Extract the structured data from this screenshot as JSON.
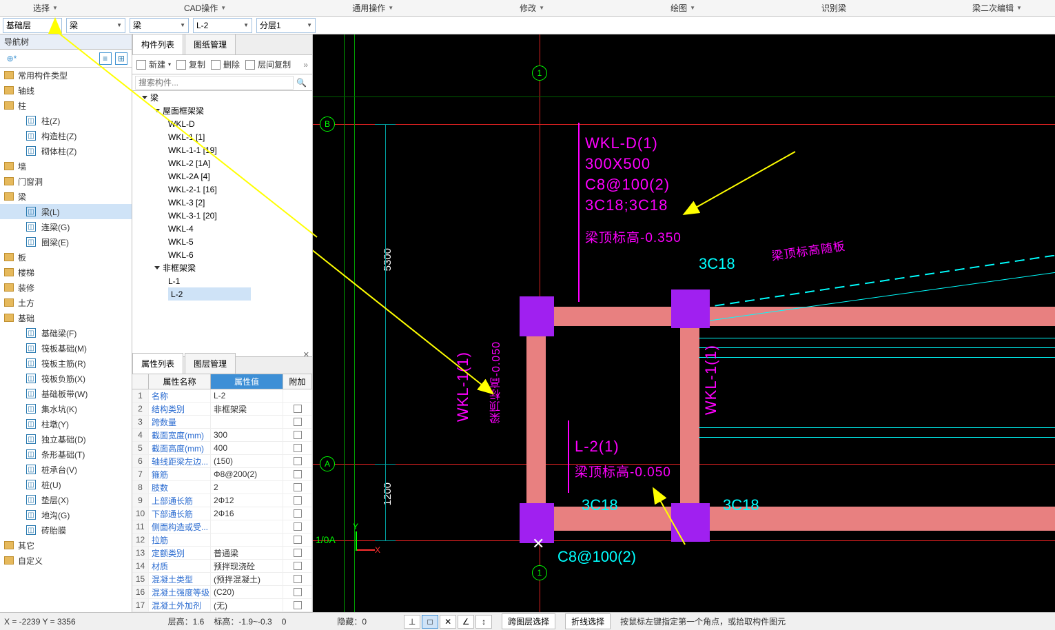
{
  "top_menu": {
    "items": [
      "选择",
      "CAD操作",
      "通用操作",
      "修改",
      "绘图",
      "识别梁",
      "梁二次编辑"
    ]
  },
  "dropdowns": {
    "layer": "基础层",
    "cat": "梁",
    "type": "梁",
    "name": "L-2",
    "sub": "分层1"
  },
  "nav": {
    "title": "导航树",
    "add_icon": "⊕*",
    "categories": [
      {
        "label": "常用构件类型",
        "leaves": []
      },
      {
        "label": "轴线",
        "leaves": []
      },
      {
        "label": "柱",
        "leaves": [
          {
            "label": "柱(Z)"
          },
          {
            "label": "构造柱(Z)"
          },
          {
            "label": "砌体柱(Z)"
          }
        ]
      },
      {
        "label": "墙",
        "leaves": []
      },
      {
        "label": "门窗洞",
        "leaves": []
      },
      {
        "label": "梁",
        "leaves": [
          {
            "label": "梁(L)",
            "sel": true
          },
          {
            "label": "连梁(G)"
          },
          {
            "label": "圈梁(E)"
          }
        ]
      },
      {
        "label": "板",
        "leaves": []
      },
      {
        "label": "楼梯",
        "leaves": []
      },
      {
        "label": "装修",
        "leaves": []
      },
      {
        "label": "土方",
        "leaves": []
      },
      {
        "label": "基础",
        "leaves": [
          {
            "label": "基础梁(F)"
          },
          {
            "label": "筏板基础(M)"
          },
          {
            "label": "筏板主筋(R)"
          },
          {
            "label": "筏板负筋(X)"
          },
          {
            "label": "基础板带(W)"
          },
          {
            "label": "集水坑(K)"
          },
          {
            "label": "柱墩(Y)"
          },
          {
            "label": "独立基础(D)"
          },
          {
            "label": "条形基础(T)"
          },
          {
            "label": "桩承台(V)"
          },
          {
            "label": "桩(U)"
          },
          {
            "label": "垫层(X)"
          },
          {
            "label": "地沟(G)"
          },
          {
            "label": "砖胎膜"
          }
        ]
      },
      {
        "label": "其它",
        "leaves": []
      },
      {
        "label": "自定义",
        "leaves": []
      }
    ]
  },
  "comp": {
    "tabs": [
      "构件列表",
      "图纸管理"
    ],
    "toolbar": {
      "new": "新建",
      "copy": "复制",
      "del": "删除",
      "layer_copy": "层间复制"
    },
    "search_placeholder": "搜索构件...",
    "tree": {
      "root": "梁",
      "groups": [
        {
          "label": "屋面框架梁",
          "items": [
            "WKL-D",
            "WKL-1 [1]",
            "WKL-1-1 [19]",
            "WKL-2 [1A]",
            "WKL-2A [4]",
            "WKL-2-1 [16]",
            "WKL-3 [2]",
            "WKL-3-1 [20]",
            "WKL-4",
            "WKL-5",
            "WKL-6"
          ]
        },
        {
          "label": "非框架梁",
          "items": [
            "L-1",
            "L-2"
          ],
          "sel": "L-2"
        }
      ]
    },
    "prop": {
      "tabs": [
        "属性列表",
        "图层管理"
      ],
      "head": {
        "name": "属性名称",
        "val": "属性值",
        "add": "附加"
      },
      "rows": [
        {
          "n": 1,
          "name": "名称",
          "val": "L-2",
          "chk": false
        },
        {
          "n": 2,
          "name": "结构类别",
          "val": "非框架梁",
          "chk": true
        },
        {
          "n": 3,
          "name": "跨数量",
          "val": "",
          "chk": true
        },
        {
          "n": 4,
          "name": "截面宽度(mm)",
          "val": "300",
          "chk": true
        },
        {
          "n": 5,
          "name": "截面高度(mm)",
          "val": "400",
          "chk": true
        },
        {
          "n": 6,
          "name": "轴线距梁左边...",
          "val": "(150)",
          "chk": true
        },
        {
          "n": 7,
          "name": "箍筋",
          "val": "Φ8@200(2)",
          "chk": true
        },
        {
          "n": 8,
          "name": "肢数",
          "val": "2",
          "chk": true
        },
        {
          "n": 9,
          "name": "上部通长筋",
          "val": "2Φ12",
          "chk": true
        },
        {
          "n": 10,
          "name": "下部通长筋",
          "val": "2Φ16",
          "chk": true
        },
        {
          "n": 11,
          "name": "侧面构造或受...",
          "val": "",
          "chk": true
        },
        {
          "n": 12,
          "name": "拉筋",
          "val": "",
          "chk": true
        },
        {
          "n": 13,
          "name": "定额类别",
          "val": "普通梁",
          "chk": true
        },
        {
          "n": 14,
          "name": "材质",
          "val": "预拌现浇砼",
          "chk": true
        },
        {
          "n": 15,
          "name": "混凝土类型",
          "val": "(预拌混凝土)",
          "chk": true
        },
        {
          "n": 16,
          "name": "混凝土强度等级",
          "val": "(C20)",
          "chk": true
        },
        {
          "n": 17,
          "name": "混凝土外加剂",
          "val": "(无)",
          "chk": true
        }
      ]
    }
  },
  "canvas": {
    "axis_labels": {
      "top": "1",
      "bottom": "1",
      "left_top": "B",
      "left_bot": "A",
      "left_mid": "1/0A"
    },
    "dim_5300": "5300",
    "dim_1200": "1200",
    "ucs": {
      "x": "X",
      "y": "Y"
    },
    "wkl_d": [
      "WKL-D(1)",
      "300X500",
      "C8@100(2)",
      "3C18;3C18",
      "梁顶标高-0.350"
    ],
    "wkl_1_left": "WKL-1(1)",
    "wkl_1_left_elev": "梁顶标高-0.050",
    "wkl_1_right": "WKL-1(1)",
    "l2": [
      "L-2(1)",
      "梁顶标高-0.050"
    ],
    "c8_bottom": "C8@100(2)",
    "rebar_3c18": "3C18",
    "rebar_top_note": "梁顶标高随板",
    "arrows_color": "#ffff00",
    "beam_color": "#e88080",
    "column_color": "#a020f0",
    "grid_color": "#e62222",
    "green_line_color": "#00ff00",
    "cyan_color": "#00ffff",
    "magenta_color": "#ff00ff"
  },
  "status": {
    "coord": "X = -2239 Y = 3356",
    "floor_h": "层高：1.6",
    "elev": "标高：-1.9~-0.3",
    "zero": "0",
    "hidden": "隐藏：0",
    "cross_layer": "跨图层选择",
    "polyline": "折线选择",
    "hint": "按鼠标左键指定第一个角点，或拾取构件图元"
  }
}
